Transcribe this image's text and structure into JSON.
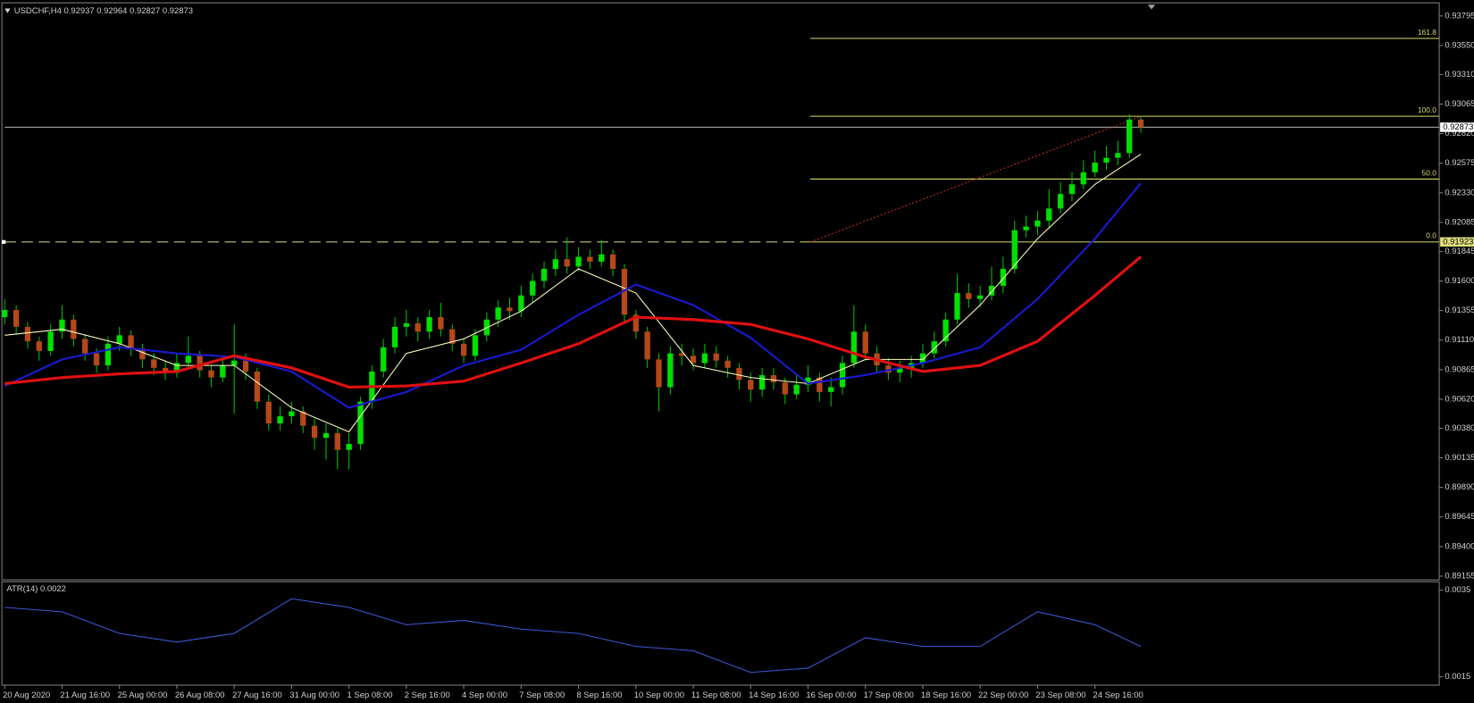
{
  "chart_data": [
    {
      "type": "candlestick",
      "header": "USDCHF,H4  0.92937 0.92964 0.92827 0.92873",
      "open": [
        0.913,
        0.9136,
        0.9122,
        0.911,
        0.9102,
        0.9118,
        0.9128,
        0.9112,
        0.91,
        0.909,
        0.9108,
        0.9115,
        0.9104,
        0.9095,
        0.9088,
        0.9084,
        0.9092,
        0.9098,
        0.9086,
        0.908,
        0.909,
        0.9094,
        0.9085,
        0.906,
        0.9042,
        0.9048,
        0.9052,
        0.904,
        0.903,
        0.9034,
        0.902,
        0.9025,
        0.906,
        0.9085,
        0.9105,
        0.9122,
        0.9125,
        0.9118,
        0.913,
        0.912,
        0.9108,
        0.9098,
        0.9115,
        0.9128,
        0.9138,
        0.9135,
        0.9148,
        0.916,
        0.917,
        0.9178,
        0.9172,
        0.918,
        0.9176,
        0.9182,
        0.917,
        0.9132,
        0.9118,
        0.9095,
        0.9072,
        0.91,
        0.9098,
        0.9092,
        0.91,
        0.9094,
        0.9088,
        0.9078,
        0.907,
        0.9082,
        0.9076,
        0.9066,
        0.9074,
        0.908,
        0.9068,
        0.9072,
        0.9092,
        0.9118,
        0.91,
        0.909,
        0.9084,
        0.9088,
        0.9092,
        0.91,
        0.911,
        0.9128,
        0.915,
        0.9145,
        0.9148,
        0.9156,
        0.917,
        0.9202,
        0.9205,
        0.921,
        0.922,
        0.9232,
        0.924,
        0.925,
        0.9258,
        0.9262,
        0.9266,
        0.92937
      ],
      "high": [
        0.9145,
        0.914,
        0.9126,
        0.9114,
        0.9124,
        0.914,
        0.9132,
        0.9116,
        0.9104,
        0.9114,
        0.9122,
        0.9119,
        0.9108,
        0.91,
        0.9094,
        0.91,
        0.9114,
        0.9102,
        0.909,
        0.9096,
        0.9124,
        0.91,
        0.9088,
        0.9066,
        0.9056,
        0.906,
        0.9056,
        0.9046,
        0.9042,
        0.9038,
        0.9034,
        0.9064,
        0.909,
        0.9112,
        0.913,
        0.9136,
        0.913,
        0.9136,
        0.9142,
        0.9124,
        0.9112,
        0.912,
        0.9134,
        0.9144,
        0.9146,
        0.9156,
        0.9166,
        0.9176,
        0.9186,
        0.9196,
        0.9188,
        0.9186,
        0.9194,
        0.9186,
        0.9174,
        0.9136,
        0.9122,
        0.91,
        0.9106,
        0.9108,
        0.9104,
        0.9108,
        0.9106,
        0.9098,
        0.9092,
        0.9084,
        0.9088,
        0.9088,
        0.908,
        0.9082,
        0.909,
        0.9084,
        0.908,
        0.9098,
        0.914,
        0.9124,
        0.9106,
        0.9096,
        0.9094,
        0.9098,
        0.9108,
        0.9118,
        0.9134,
        0.9166,
        0.9158,
        0.9156,
        0.9172,
        0.918,
        0.921,
        0.9214,
        0.9218,
        0.9236,
        0.9242,
        0.925,
        0.926,
        0.9268,
        0.9272,
        0.9276,
        0.9298,
        0.92964
      ],
      "low": [
        0.9124,
        0.9116,
        0.9104,
        0.9094,
        0.9098,
        0.9112,
        0.9106,
        0.9094,
        0.9084,
        0.9086,
        0.9102,
        0.9098,
        0.9088,
        0.9082,
        0.9078,
        0.908,
        0.9088,
        0.908,
        0.9072,
        0.9076,
        0.905,
        0.9078,
        0.9054,
        0.9036,
        0.9036,
        0.9042,
        0.9034,
        0.902,
        0.9012,
        0.9004,
        0.9004,
        0.902,
        0.9054,
        0.908,
        0.91,
        0.9114,
        0.911,
        0.9112,
        0.9114,
        0.9102,
        0.9092,
        0.9094,
        0.911,
        0.9122,
        0.9128,
        0.913,
        0.9142,
        0.9154,
        0.9164,
        0.9166,
        0.9168,
        0.917,
        0.9172,
        0.9164,
        0.9126,
        0.9112,
        0.9088,
        0.9052,
        0.9066,
        0.909,
        0.9086,
        0.9088,
        0.9088,
        0.908,
        0.907,
        0.906,
        0.9064,
        0.907,
        0.9058,
        0.9062,
        0.9068,
        0.906,
        0.9056,
        0.9066,
        0.9088,
        0.9094,
        0.9084,
        0.9078,
        0.9076,
        0.908,
        0.9088,
        0.9096,
        0.9106,
        0.9124,
        0.9138,
        0.9138,
        0.9144,
        0.915,
        0.9166,
        0.9196,
        0.9198,
        0.9204,
        0.9216,
        0.9226,
        0.9236,
        0.9246,
        0.9252,
        0.9256,
        0.9262,
        0.92827
      ],
      "close": [
        0.9136,
        0.9122,
        0.911,
        0.9102,
        0.9118,
        0.9128,
        0.9112,
        0.91,
        0.909,
        0.9108,
        0.9115,
        0.9104,
        0.9095,
        0.9088,
        0.9084,
        0.9092,
        0.9098,
        0.9086,
        0.908,
        0.909,
        0.9094,
        0.9085,
        0.906,
        0.9042,
        0.9048,
        0.9052,
        0.904,
        0.903,
        0.9034,
        0.902,
        0.9025,
        0.906,
        0.9085,
        0.9105,
        0.9122,
        0.9125,
        0.9118,
        0.913,
        0.912,
        0.9108,
        0.9098,
        0.9115,
        0.9128,
        0.9138,
        0.9135,
        0.9148,
        0.916,
        0.917,
        0.9178,
        0.9172,
        0.918,
        0.9176,
        0.9182,
        0.917,
        0.9132,
        0.9118,
        0.9095,
        0.9072,
        0.91,
        0.9098,
        0.9092,
        0.91,
        0.9094,
        0.9088,
        0.9078,
        0.907,
        0.9082,
        0.9076,
        0.9066,
        0.9074,
        0.908,
        0.9068,
        0.9072,
        0.9092,
        0.9118,
        0.91,
        0.909,
        0.9084,
        0.9088,
        0.9092,
        0.91,
        0.911,
        0.9128,
        0.915,
        0.9145,
        0.9148,
        0.9156,
        0.917,
        0.9202,
        0.9205,
        0.921,
        0.922,
        0.9232,
        0.924,
        0.925,
        0.9258,
        0.9262,
        0.9266,
        0.92937,
        0.92873
      ],
      "bull_color": "#00e000",
      "bear_color": "#b4481a",
      "wick_color": "#00c000",
      "ma_x": [
        0,
        5,
        10,
        15,
        20,
        25,
        30,
        35,
        40,
        45,
        50,
        55,
        60,
        65,
        70,
        75,
        80,
        85,
        90,
        95,
        99
      ],
      "series": [
        {
          "color": "#ffffc0",
          "width": 1,
          "values": [
            0.9115,
            0.912,
            0.9108,
            0.909,
            0.909,
            0.9055,
            0.9035,
            0.91,
            0.9112,
            0.9135,
            0.917,
            0.915,
            0.909,
            0.908,
            0.9075,
            0.9095,
            0.9095,
            0.914,
            0.9195,
            0.924,
            0.9265
          ]
        },
        {
          "color": "#1a1ad0",
          "width": 2,
          "values": [
            0.9073,
            0.9095,
            0.9105,
            0.91,
            0.9097,
            0.9085,
            0.9055,
            0.9068,
            0.909,
            0.9103,
            0.9132,
            0.9157,
            0.914,
            0.9113,
            0.9075,
            0.9082,
            0.9092,
            0.9105,
            0.9145,
            0.9195,
            0.9241
          ]
        },
        {
          "color": "#e01010",
          "width": 3,
          "values": [
            0.9075,
            0.908,
            0.9083,
            0.9085,
            0.9098,
            0.9088,
            0.9072,
            0.9073,
            0.9077,
            0.9092,
            0.9108,
            0.913,
            0.9128,
            0.9124,
            0.9112,
            0.9097,
            0.9085,
            0.909,
            0.911,
            0.9148,
            0.918
          ]
        }
      ],
      "xlim": [
        0,
        125
      ],
      "xticks": [
        {
          "value": 0,
          "label": "20 Aug 2020"
        },
        {
          "value": 5,
          "label": "21 Aug 16:00"
        },
        {
          "value": 10,
          "label": "25 Aug 00:00"
        },
        {
          "value": 15,
          "label": "26 Aug 08:00"
        },
        {
          "value": 20,
          "label": "27 Aug 16:00"
        },
        {
          "value": 25,
          "label": "31 Aug 00:00"
        },
        {
          "value": 30,
          "label": "1 Sep 08:00"
        },
        {
          "value": 35,
          "label": "2 Sep 16:00"
        },
        {
          "value": 40,
          "label": "4 Sep 00:00"
        },
        {
          "value": 45,
          "label": "7 Sep 08:00"
        },
        {
          "value": 50,
          "label": "8 Sep 16:00"
        },
        {
          "value": 55,
          "label": "10 Sep 00:00"
        },
        {
          "value": 60,
          "label": "11 Sep 08:00"
        },
        {
          "value": 65,
          "label": "14 Sep 16:00"
        },
        {
          "value": 70,
          "label": "16 Sep 00:00"
        },
        {
          "value": 75,
          "label": "17 Sep 08:00"
        },
        {
          "value": 80,
          "label": "18 Sep 16:00"
        },
        {
          "value": 85,
          "label": "22 Sep 00:00"
        },
        {
          "value": 90,
          "label": "23 Sep 08:00"
        },
        {
          "value": 95,
          "label": "24 Sep 16:00"
        }
      ],
      "ylim": [
        0.89124,
        0.93888
      ],
      "yticks": [
        0.93795,
        {
          "value": 0.9355,
          "label": "0.93550"
        },
        {
          "value": 0.9331,
          "label": "0.93310"
        },
        0.93065,
        {
          "value": 0.9282,
          "label": "0.92820"
        },
        0.92575,
        {
          "value": 0.9233,
          "label": "0.92330"
        },
        0.92085,
        0.91845,
        {
          "value": 0.916,
          "label": "0.91600"
        },
        0.91355,
        {
          "value": 0.9111,
          "label": "0.91110"
        },
        0.90865,
        {
          "value": 0.9062,
          "label": "0.90620"
        },
        {
          "value": 0.9038,
          "label": "0.90380"
        },
        0.90135,
        {
          "value": 0.8989,
          "label": "0.89890"
        },
        0.89645,
        {
          "value": 0.894,
          "label": "0.89400"
        },
        0.89155
      ],
      "fib": {
        "start": 70.2,
        "levels": [
          {
            "label": "161.8",
            "value": 0.93609
          },
          {
            "label": "100.0",
            "value": 0.92964
          },
          {
            "label": "50.0",
            "value": 0.92444
          },
          {
            "label": "0.0",
            "value": 0.91923
          }
        ],
        "color": "#d8d870"
      },
      "trend_line": {
        "x": [
          70.2,
          99
        ],
        "values": [
          0.91923,
          0.92964
        ],
        "color": "#c03020"
      },
      "bid_line": {
        "value": 0.92873,
        "color": "#a0a0a0"
      },
      "level_line": {
        "value": 0.91923,
        "color": "#e0e080"
      }
    },
    {
      "type": "line",
      "title": "ATR(14) 0.0022",
      "color": "#3a5ad8",
      "x": [
        0,
        5,
        10,
        15,
        20,
        25,
        30,
        35,
        40,
        45,
        50,
        55,
        60,
        65,
        70,
        75,
        80,
        85,
        90,
        95,
        99
      ],
      "values": [
        0.0031,
        0.003,
        0.0025,
        0.0023,
        0.0025,
        0.0033,
        0.0031,
        0.0027,
        0.0028,
        0.0026,
        0.0025,
        0.0022,
        0.0021,
        0.0016,
        0.0017,
        0.0024,
        0.0022,
        0.0022,
        0.003,
        0.0027,
        0.0022
      ],
      "xlim": [
        0,
        125
      ],
      "ylim": [
        0.00135,
        0.00367
      ],
      "yticks": [
        0.0035,
        0.0015
      ]
    }
  ]
}
